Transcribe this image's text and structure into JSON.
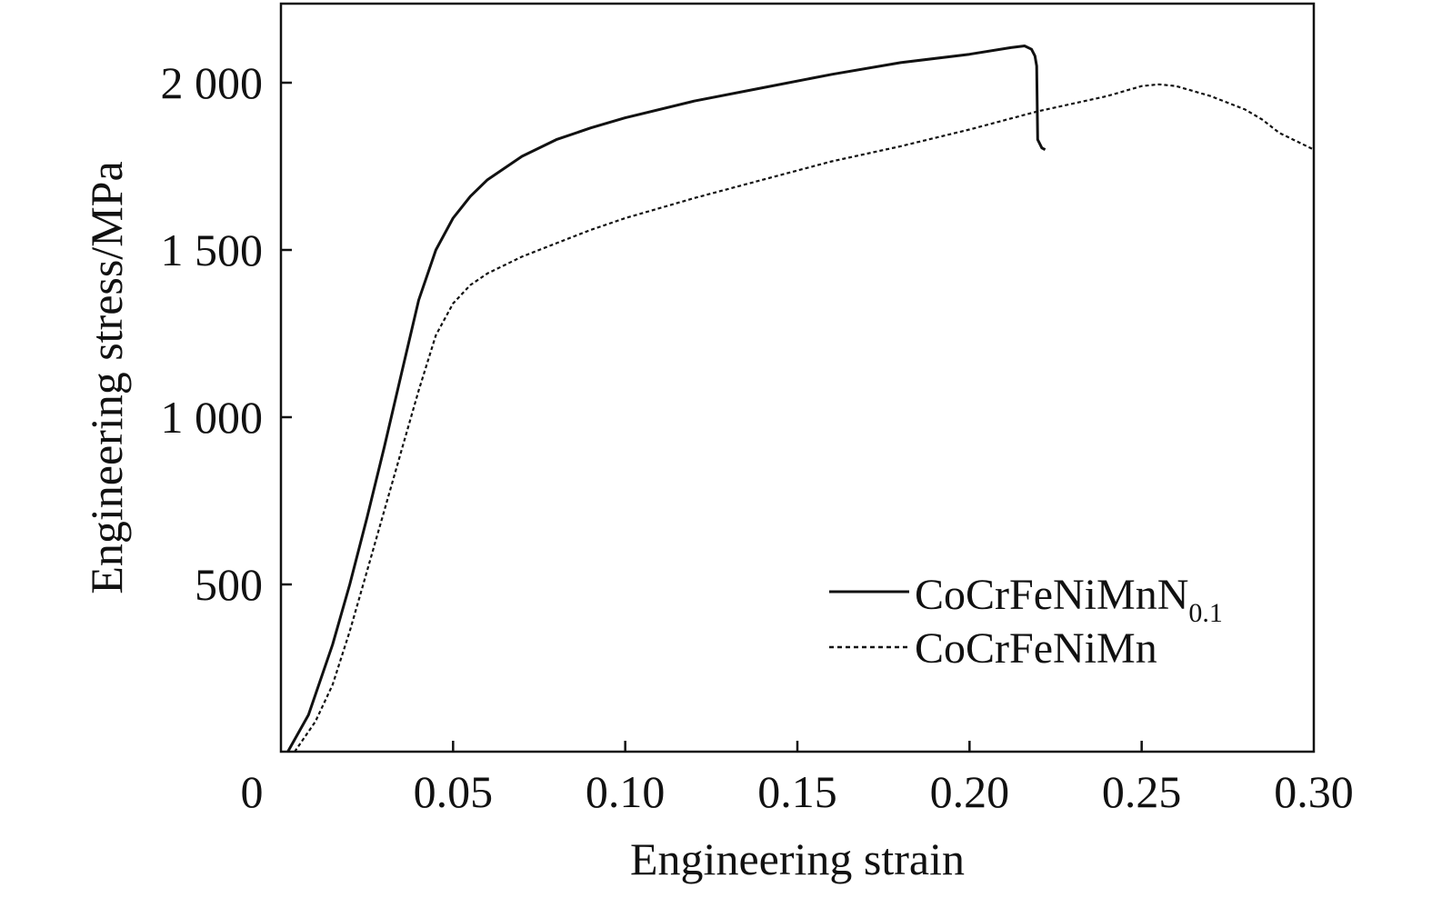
{
  "chart_data": {
    "type": "line",
    "xlabel": "Engineering strain",
    "ylabel": "Engineering stress/MPa",
    "xlim": [
      0,
      0.3
    ],
    "ylim": [
      0,
      2000
    ],
    "x_ticks": [
      0,
      0.05,
      0.1,
      0.15,
      0.2,
      0.25,
      0.3
    ],
    "x_tick_labels": [
      "0",
      "0.05",
      "0.10",
      "0.15",
      "0.20",
      "0.25",
      "0.30"
    ],
    "y_ticks": [
      500,
      1000,
      1500,
      2000
    ],
    "y_tick_labels": [
      "500",
      "1 000",
      "1 500",
      "2 000"
    ],
    "grid": false,
    "legend_position": "bottom-right",
    "series": [
      {
        "name": "CoCrFeNiMnN",
        "name_subscript": "0.1",
        "style": "solid",
        "color": "#111111",
        "x": [
          0.002,
          0.008,
          0.015,
          0.02,
          0.025,
          0.03,
          0.035,
          0.04,
          0.045,
          0.05,
          0.055,
          0.06,
          0.07,
          0.08,
          0.09,
          0.1,
          0.12,
          0.14,
          0.16,
          0.18,
          0.2,
          0.212,
          0.216,
          0.218,
          0.219,
          0.2195,
          0.2198,
          0.221,
          0.222
        ],
        "y": [
          0,
          110,
          320,
          500,
          700,
          910,
          1130,
          1350,
          1500,
          1595,
          1660,
          1710,
          1780,
          1830,
          1865,
          1895,
          1945,
          1985,
          2025,
          2060,
          2085,
          2105,
          2110,
          2100,
          2080,
          2050,
          1830,
          1805,
          1800
        ]
      },
      {
        "name": "CoCrFeNiMn",
        "style": "dashed",
        "color": "#111111",
        "x": [
          0.004,
          0.01,
          0.015,
          0.02,
          0.025,
          0.03,
          0.035,
          0.04,
          0.045,
          0.05,
          0.055,
          0.06,
          0.07,
          0.08,
          0.09,
          0.1,
          0.12,
          0.14,
          0.16,
          0.18,
          0.2,
          0.22,
          0.24,
          0.25,
          0.255,
          0.26,
          0.27,
          0.28,
          0.285,
          0.29,
          0.3
        ],
        "y": [
          0,
          90,
          200,
          360,
          540,
          720,
          900,
          1080,
          1245,
          1340,
          1395,
          1430,
          1480,
          1520,
          1560,
          1595,
          1655,
          1710,
          1765,
          1810,
          1860,
          1915,
          1960,
          1990,
          1995,
          1990,
          1960,
          1920,
          1890,
          1850,
          1800
        ]
      }
    ]
  }
}
